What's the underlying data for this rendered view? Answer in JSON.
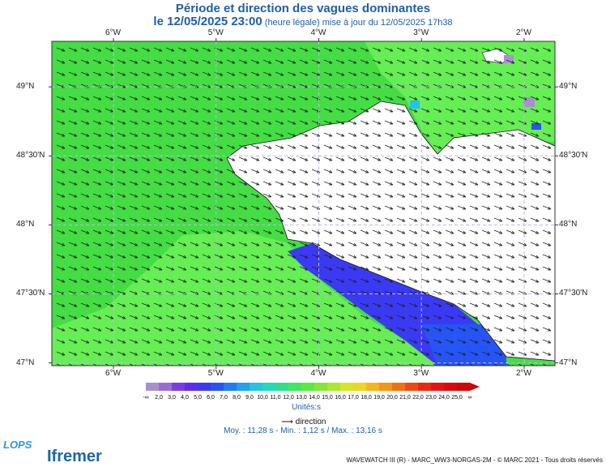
{
  "header": {
    "title": "Période et direction des vagues dominantes",
    "date": "le 12/05/2025 23:00",
    "subtitle": "(heure légale) mise à jour du 12/05/2025 17h38"
  },
  "map": {
    "lon_labels": [
      "6°W",
      "5°W",
      "4°W",
      "3°W",
      "2°W"
    ],
    "lat_labels": [
      "49°N",
      "48°30'N",
      "48°N",
      "47°30'N",
      "47°N"
    ],
    "lon_range": [
      -6.6,
      -1.7
    ],
    "lat_range": [
      46.98,
      49.33
    ],
    "colors": {
      "sea_main": "#44dd44",
      "sea_light": "#66ee55",
      "sea_blue": "#3344ee",
      "land": "#ffffff"
    }
  },
  "legend": {
    "stops": [
      "-∞",
      "2,0",
      "3,0",
      "4,0",
      "5,0",
      "6,0",
      "7,0",
      "8,0",
      "9,0",
      "10,0",
      "11,0",
      "12,0",
      "13,0",
      "14,0",
      "15,0",
      "16,0",
      "17,0",
      "18,0",
      "19,0",
      "20,0",
      "21,0",
      "22,0",
      "23,0",
      "24,0",
      "25,0",
      "∞"
    ],
    "colors": [
      "#a98fd0",
      "#9c6ad6",
      "#7a3ce8",
      "#5b2ef2",
      "#3a3af5",
      "#2655f5",
      "#1f7cf5",
      "#1fa0f0",
      "#1fc4e6",
      "#22d9b8",
      "#2ee08a",
      "#40e65c",
      "#5cea3e",
      "#7fe835",
      "#a8e82e",
      "#d4e628",
      "#f0d520",
      "#f5b51a",
      "#f59515",
      "#f27012",
      "#ee4a10",
      "#e82a10",
      "#e01510",
      "#d80c0c",
      "#cc0808"
    ],
    "units": "Unités:s",
    "direction_label": "direction"
  },
  "stats": {
    "text": "Moy. : 11,28 s   -   Min. : 1,12 s / Max. : 13,16 s"
  },
  "footer": {
    "text": "WAVEWATCH III (R) - MARC_WW3-NORGAS-2M - © MARC 2021 - Tous droits réservés"
  },
  "logos": {
    "lops": "LOPS",
    "ifremer": "Ifremer"
  }
}
